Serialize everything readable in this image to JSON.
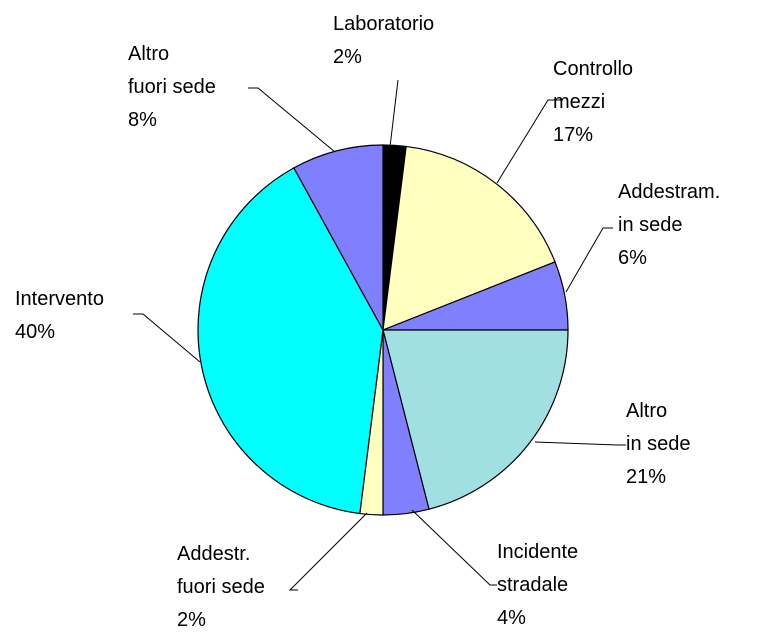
{
  "chart_data": {
    "type": "pie",
    "categories": [
      "Laboratorio",
      "Controllo\nmezzi",
      "Addestram.\nin sede",
      "Altro\nin sede",
      "Incidente\nstradale",
      "Addestr.\nfuori sede",
      "Intervento",
      "Altro\nfuori sede"
    ],
    "values": [
      2,
      17,
      6,
      21,
      4,
      2,
      40,
      8
    ],
    "value_labels": [
      "2%",
      "17%",
      "6%",
      "21%",
      "4%",
      "2%",
      "40%",
      "8%"
    ],
    "colors": [
      "#000000",
      "#ffffc0",
      "#8080ff",
      "#a0e0e0",
      "#8080ff",
      "#ffffc0",
      "#00ffff",
      "#8080ff"
    ]
  }
}
